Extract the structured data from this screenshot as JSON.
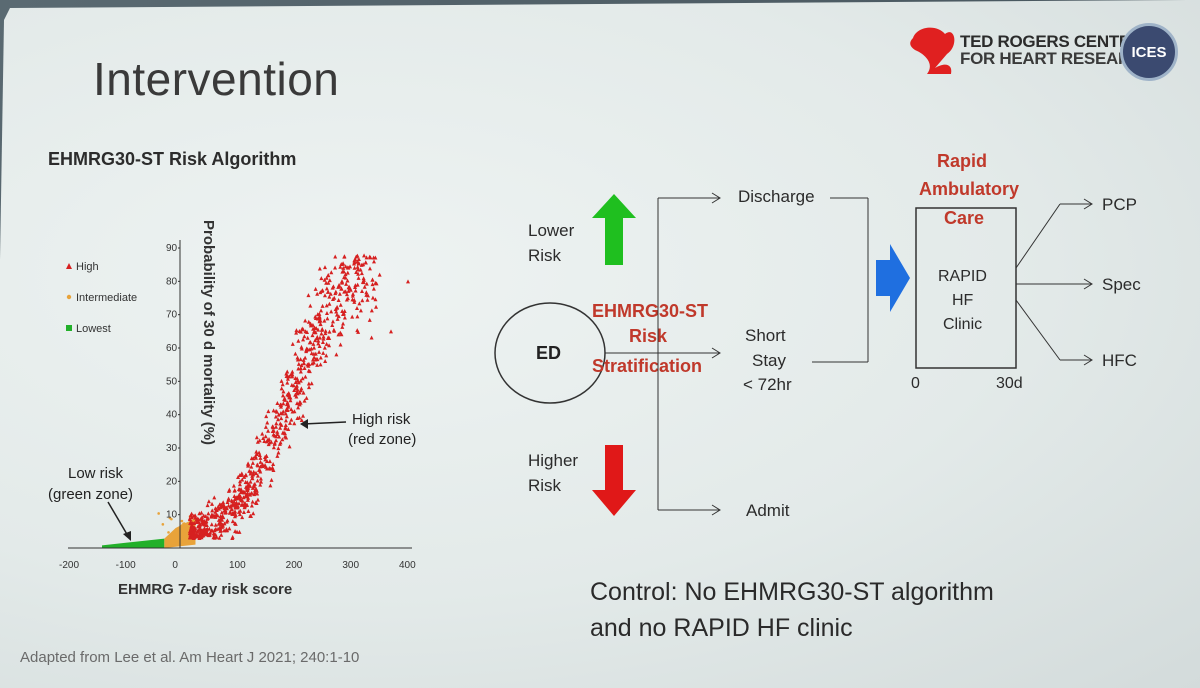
{
  "slide": {
    "title": "Intervention",
    "algorithm_title": "EHMRG30-ST Risk Algorithm",
    "citation": "Adapted from Lee et al. Am Heart J 2021; 240:1-10",
    "logo": {
      "line1": "TED ROGERS CENTRE",
      "line2": "FOR HEART RESEARCH",
      "badge": "ICES"
    }
  },
  "chart_data": {
    "type": "scatter",
    "xlabel": "EHMRG 7-day risk score",
    "ylabel": "Probability of 30 d mortality (%)",
    "xlim": [
      -200,
      400
    ],
    "ylim": [
      0,
      90
    ],
    "x_ticks": [
      "-200",
      "-100",
      "0",
      "100",
      "200",
      "300",
      "400"
    ],
    "y_ticks": [
      "10",
      "20",
      "30",
      "40",
      "50",
      "60",
      "70",
      "80",
      "90"
    ],
    "legend": [
      {
        "name": "High",
        "color": "#d62020",
        "marker": "triangle"
      },
      {
        "name": "Intermediate",
        "color": "#e8a33a",
        "marker": "dot"
      },
      {
        "name": "Lowest",
        "color": "#22b02a",
        "marker": "square"
      }
    ],
    "annotations": {
      "high": [
        "High risk",
        "(red zone)"
      ],
      "low": [
        "Low risk",
        "(green zone)"
      ]
    },
    "series": [
      {
        "name": "Lowest",
        "range_x": [
          -140,
          -30
        ],
        "range_y": [
          0,
          3
        ]
      },
      {
        "name": "Intermediate",
        "range_x": [
          -30,
          20
        ],
        "range_y": [
          2,
          10
        ]
      },
      {
        "name": "High",
        "range_x": [
          20,
          400
        ],
        "range_y": [
          5,
          86
        ]
      }
    ]
  },
  "flow": {
    "lower_risk": [
      "Lower",
      "Risk"
    ],
    "higher_risk": [
      "Higher",
      "Risk"
    ],
    "ed": "ED",
    "stratification": [
      "EHMRG30-ST",
      "Risk",
      "Stratification"
    ],
    "discharge": "Discharge",
    "short_stay": [
      "Short",
      "Stay",
      "< 72hr"
    ],
    "admit": "Admit",
    "rapid_care": [
      "Rapid",
      "Ambulatory",
      "Care"
    ],
    "clinic": [
      "RAPID",
      "HF",
      "Clinic"
    ],
    "timeline_start": "0",
    "timeline_end": "30d",
    "outcomes": [
      "PCP",
      "Spec",
      "HFC"
    ]
  },
  "control": [
    "Control:  No EHMRG30-ST algorithm",
    "and no RAPID HF clinic"
  ],
  "colors": {
    "accent_red": "#c0392b",
    "arrow_green": "#1fbf1f",
    "arrow_red": "#e01818",
    "arrow_blue": "#1f6fe0"
  }
}
